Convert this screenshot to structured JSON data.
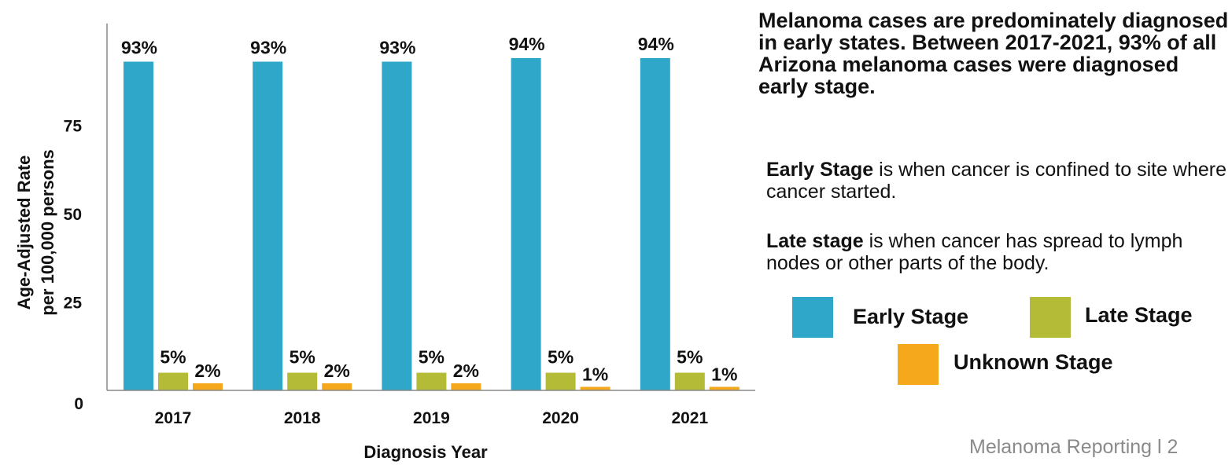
{
  "colors": {
    "early": "#2ea7c9",
    "late": "#b3bb37",
    "unknown": "#f5a81c",
    "axis": "#888888"
  },
  "chart_data": {
    "type": "bar",
    "categories": [
      "2017",
      "2018",
      "2019",
      "2020",
      "2021"
    ],
    "series": [
      {
        "name": "Early Stage",
        "values": [
          93,
          93,
          93,
          94,
          94
        ],
        "labels": [
          "93%",
          "93%",
          "93%",
          "94%",
          "94%"
        ]
      },
      {
        "name": "Late Stage",
        "values": [
          5,
          5,
          5,
          5,
          5
        ],
        "labels": [
          "5%",
          "5%",
          "5%",
          "5%",
          "5%"
        ]
      },
      {
        "name": "Unknown Stage",
        "values": [
          2,
          2,
          2,
          1,
          1
        ],
        "labels": [
          "2%",
          "2%",
          "2%",
          "1%",
          "1%"
        ]
      }
    ],
    "xlabel": "Diagnosis Year",
    "ylabel": [
      "Age-Adjusted Rate",
      "per 100,000 persons"
    ],
    "yticks": [
      0,
      25,
      50,
      75
    ],
    "ylim": [
      0,
      100
    ],
    "grid": false,
    "legend": "right"
  },
  "headline": "Melanoma cases are predominately diagnosed in early states. Between 2017-2021, 93% of all Arizona melanoma cases were diagnosed early stage.",
  "definitions": {
    "early_term": "Early Stage",
    "early_text": " is when cancer is confined to site where cancer started.",
    "late_term": "Late stage",
    "late_text": " is when cancer has spread to lymph nodes or other parts of the body."
  },
  "legend": {
    "early": "Early Stage",
    "late": "Late Stage",
    "unknown": "Unknown Stage"
  },
  "footer": "Melanoma Reporting l 2"
}
